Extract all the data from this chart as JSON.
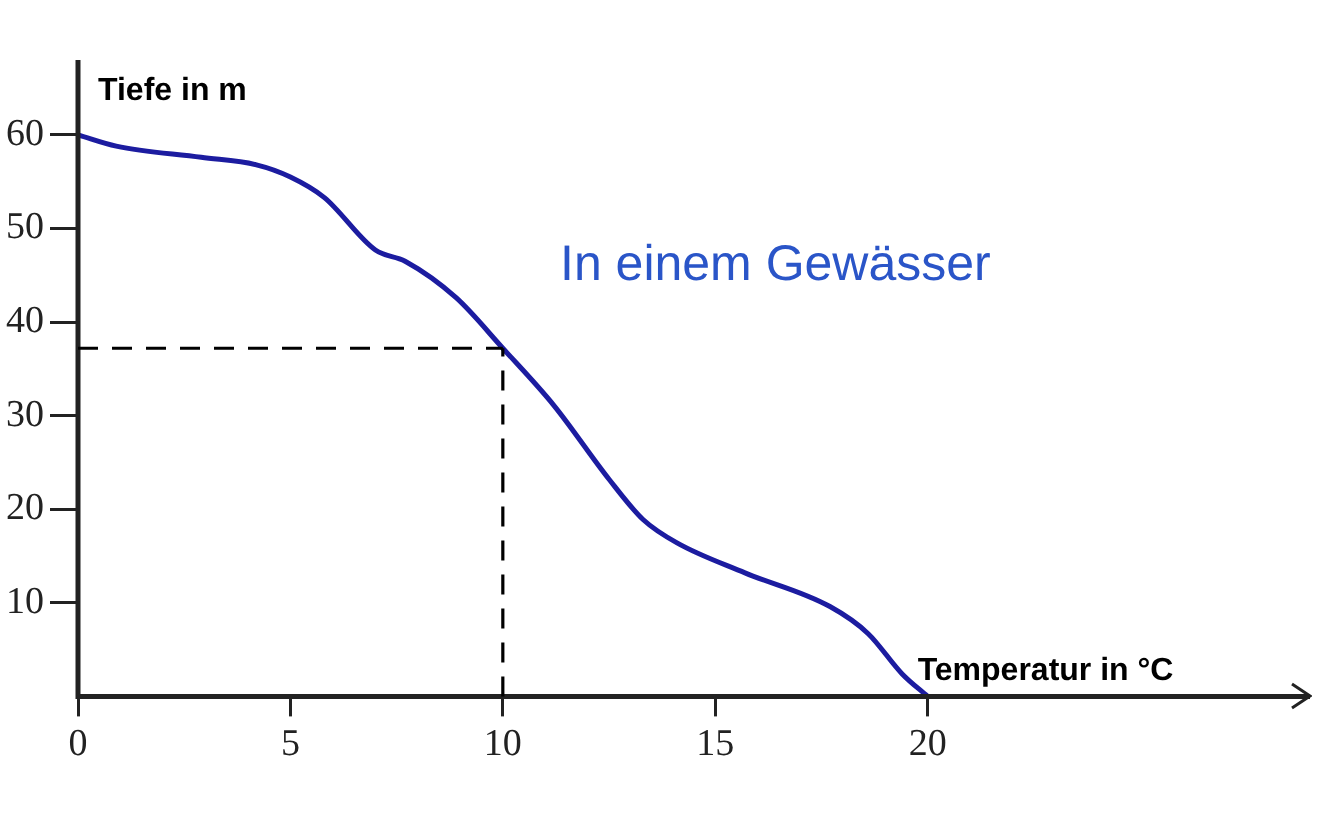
{
  "chart_data": {
    "type": "line",
    "xlabel": "Temperatur in °C",
    "ylabel": "Tiefe in m",
    "annotations": [
      "In einem Gewässer"
    ],
    "x": [
      0,
      0.9,
      2.9,
      4.2,
      5,
      5.8,
      7,
      7.7,
      8.9,
      10,
      11.2,
      12.5,
      13.3,
      14.1,
      15.7,
      17.7,
      18.6,
      19.4,
      20
    ],
    "series": [
      {
        "color": "#1c1ca0",
        "values": [
          60,
          58.8,
          57.6,
          56.8,
          55.5,
          53.3,
          47.7,
          46.5,
          42.6,
          37.2,
          31.1,
          23.2,
          18.9,
          16.4,
          13.2,
          9.6,
          6.7,
          2.4,
          0
        ]
      }
    ],
    "xlim": [
      0,
      29
    ],
    "xticks": [
      0,
      5,
      10,
      15,
      20
    ],
    "ylim": [
      0,
      68
    ],
    "yticks": [
      10,
      20,
      30,
      40,
      50,
      60
    ],
    "ref_lines": [
      {
        "axis": "x",
        "value": 10,
        "color": "#000000",
        "line_style": "dashed"
      },
      {
        "axis": "y",
        "value": 37.2,
        "color": "#000000",
        "line_style": "dashed"
      }
    ],
    "grid": false,
    "legend": false,
    "marker": "none",
    "line_style": "solid"
  }
}
